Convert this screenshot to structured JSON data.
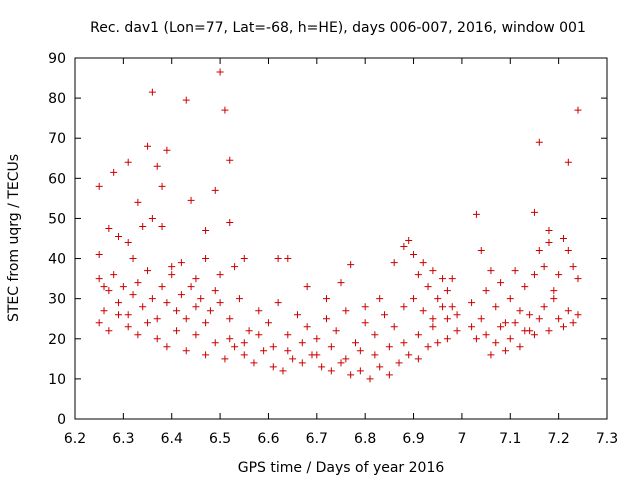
{
  "chart_data": {
    "type": "scatter",
    "title": "Rec. dav1 (Lon=77, Lat=-68, h=HE), days 006-007, 2016, window 001",
    "xlabel": "GPS time / Days of year 2016",
    "ylabel": "STEC from uqrg / TECUs",
    "xlim": [
      6.2,
      7.3
    ],
    "ylim": [
      0,
      90
    ],
    "xticks": [
      "6.2",
      "6.3",
      "6.4",
      "6.5",
      "6.6",
      "6.7",
      "6.8",
      "6.9",
      "7",
      "7.1",
      "7.2",
      "7.3"
    ],
    "yticks": [
      "0",
      "10",
      "20",
      "30",
      "40",
      "50",
      "60",
      "70",
      "80",
      "90"
    ],
    "grid": false,
    "legend": "none",
    "marker": "plus",
    "color": "#cc0000",
    "points": [
      [
        6.25,
        58
      ],
      [
        6.28,
        61.5
      ],
      [
        6.31,
        64
      ],
      [
        6.33,
        54
      ],
      [
        6.35,
        68
      ],
      [
        6.36,
        81.5
      ],
      [
        6.37,
        63
      ],
      [
        6.38,
        58
      ],
      [
        6.39,
        67
      ],
      [
        6.43,
        79.5
      ],
      [
        6.44,
        54.5
      ],
      [
        6.47,
        47
      ],
      [
        6.49,
        57
      ],
      [
        6.5,
        86.5
      ],
      [
        6.51,
        77
      ],
      [
        6.52,
        64.5
      ],
      [
        6.52,
        49
      ],
      [
        6.26,
        33
      ],
      [
        6.25,
        41
      ],
      [
        6.27,
        47.5
      ],
      [
        6.29,
        45.5
      ],
      [
        6.31,
        44
      ],
      [
        6.32,
        40
      ],
      [
        6.34,
        48
      ],
      [
        6.36,
        50
      ],
      [
        6.38,
        48
      ],
      [
        6.4,
        38
      ],
      [
        6.42,
        39
      ],
      [
        6.45,
        35
      ],
      [
        6.47,
        40
      ],
      [
        6.5,
        36
      ],
      [
        6.53,
        38
      ],
      [
        6.55,
        40
      ],
      [
        6.62,
        40
      ],
      [
        6.64,
        40
      ],
      [
        6.25,
        35
      ],
      [
        6.26,
        27
      ],
      [
        6.27,
        32
      ],
      [
        6.28,
        36
      ],
      [
        6.29,
        29
      ],
      [
        6.3,
        33
      ],
      [
        6.31,
        26
      ],
      [
        6.32,
        31
      ],
      [
        6.33,
        34
      ],
      [
        6.34,
        28
      ],
      [
        6.35,
        37
      ],
      [
        6.36,
        30
      ],
      [
        6.37,
        25
      ],
      [
        6.38,
        33
      ],
      [
        6.39,
        29
      ],
      [
        6.4,
        36
      ],
      [
        6.41,
        27
      ],
      [
        6.42,
        31
      ],
      [
        6.43,
        25
      ],
      [
        6.44,
        33
      ],
      [
        6.45,
        28
      ],
      [
        6.46,
        30
      ],
      [
        6.47,
        24
      ],
      [
        6.48,
        27
      ],
      [
        6.49,
        32
      ],
      [
        6.25,
        24
      ],
      [
        6.27,
        22
      ],
      [
        6.29,
        26
      ],
      [
        6.31,
        23
      ],
      [
        6.33,
        21
      ],
      [
        6.35,
        24
      ],
      [
        6.37,
        20
      ],
      [
        6.39,
        18
      ],
      [
        6.41,
        22
      ],
      [
        6.43,
        17
      ],
      [
        6.45,
        21
      ],
      [
        6.47,
        16
      ],
      [
        6.49,
        19
      ],
      [
        6.51,
        15
      ],
      [
        6.53,
        18
      ],
      [
        6.55,
        16
      ],
      [
        6.57,
        14
      ],
      [
        6.59,
        17
      ],
      [
        6.61,
        13
      ],
      [
        6.63,
        12
      ],
      [
        6.65,
        15
      ],
      [
        6.67,
        14
      ],
      [
        6.69,
        16
      ],
      [
        6.71,
        13
      ],
      [
        6.73,
        12
      ],
      [
        6.75,
        14
      ],
      [
        6.77,
        11
      ],
      [
        6.79,
        12
      ],
      [
        6.81,
        10
      ],
      [
        6.83,
        13
      ],
      [
        6.85,
        11
      ],
      [
        6.87,
        14
      ],
      [
        6.89,
        16
      ],
      [
        6.91,
        15
      ],
      [
        6.93,
        18
      ],
      [
        6.95,
        19
      ],
      [
        6.97,
        20
      ],
      [
        6.99,
        22
      ],
      [
        6.5,
        29
      ],
      [
        6.52,
        25
      ],
      [
        6.54,
        30
      ],
      [
        6.56,
        22
      ],
      [
        6.58,
        27
      ],
      [
        6.6,
        24
      ],
      [
        6.62,
        29
      ],
      [
        6.64,
        21
      ],
      [
        6.66,
        26
      ],
      [
        6.68,
        23
      ],
      [
        6.7,
        20
      ],
      [
        6.72,
        25
      ],
      [
        6.74,
        22
      ],
      [
        6.76,
        27
      ],
      [
        6.78,
        19
      ],
      [
        6.8,
        24
      ],
      [
        6.82,
        21
      ],
      [
        6.84,
        26
      ],
      [
        6.86,
        23
      ],
      [
        6.88,
        28
      ],
      [
        6.52,
        20
      ],
      [
        6.55,
        19
      ],
      [
        6.58,
        21
      ],
      [
        6.61,
        18
      ],
      [
        6.64,
        17
      ],
      [
        6.67,
        19
      ],
      [
        6.7,
        16
      ],
      [
        6.73,
        18
      ],
      [
        6.76,
        15
      ],
      [
        6.79,
        17
      ],
      [
        6.82,
        16
      ],
      [
        6.85,
        18
      ],
      [
        6.88,
        19
      ],
      [
        6.91,
        21
      ],
      [
        6.94,
        23
      ],
      [
        6.97,
        25
      ],
      [
        6.68,
        33
      ],
      [
        6.72,
        30
      ],
      [
        6.75,
        34
      ],
      [
        6.77,
        38.5
      ],
      [
        6.8,
        28
      ],
      [
        6.83,
        30
      ],
      [
        6.86,
        39
      ],
      [
        6.88,
        43
      ],
      [
        6.89,
        44.5
      ],
      [
        6.9,
        41
      ],
      [
        6.91,
        36
      ],
      [
        6.92,
        39
      ],
      [
        6.93,
        33
      ],
      [
        6.94,
        37
      ],
      [
        6.95,
        30
      ],
      [
        6.96,
        35
      ],
      [
        6.97,
        32
      ],
      [
        6.98,
        28
      ],
      [
        6.99,
        26
      ],
      [
        6.9,
        30
      ],
      [
        6.92,
        27
      ],
      [
        6.94,
        25
      ],
      [
        6.96,
        28
      ],
      [
        6.98,
        35
      ],
      [
        7.02,
        23
      ],
      [
        7.03,
        51
      ],
      [
        7.04,
        42
      ],
      [
        7.05,
        32
      ],
      [
        7.06,
        37
      ],
      [
        7.07,
        28
      ],
      [
        7.08,
        34
      ],
      [
        7.09,
        24
      ],
      [
        7.1,
        30
      ],
      [
        7.11,
        37
      ],
      [
        7.12,
        27
      ],
      [
        7.13,
        33
      ],
      [
        7.14,
        22
      ],
      [
        7.15,
        36
      ],
      [
        7.16,
        42
      ],
      [
        7.17,
        38
      ],
      [
        7.18,
        44
      ],
      [
        7.19,
        32
      ],
      [
        7.2,
        36
      ],
      [
        7.21,
        45
      ],
      [
        7.22,
        42
      ],
      [
        7.23,
        38
      ],
      [
        7.24,
        35
      ],
      [
        7.02,
        29
      ],
      [
        7.03,
        20
      ],
      [
        7.04,
        25
      ],
      [
        7.05,
        21
      ],
      [
        7.06,
        16
      ],
      [
        7.07,
        19
      ],
      [
        7.08,
        23
      ],
      [
        7.09,
        17
      ],
      [
        7.1,
        20
      ],
      [
        7.11,
        24
      ],
      [
        7.12,
        18
      ],
      [
        7.13,
        22
      ],
      [
        7.14,
        26
      ],
      [
        7.15,
        21
      ],
      [
        7.16,
        25
      ],
      [
        7.17,
        28
      ],
      [
        7.18,
        22
      ],
      [
        7.19,
        30
      ],
      [
        7.2,
        25
      ],
      [
        7.21,
        23
      ],
      [
        7.22,
        27
      ],
      [
        7.23,
        24
      ],
      [
        7.24,
        26
      ],
      [
        7.15,
        51.5
      ],
      [
        7.16,
        69
      ],
      [
        7.18,
        47
      ],
      [
        7.22,
        64
      ],
      [
        7.24,
        77
      ]
    ]
  }
}
